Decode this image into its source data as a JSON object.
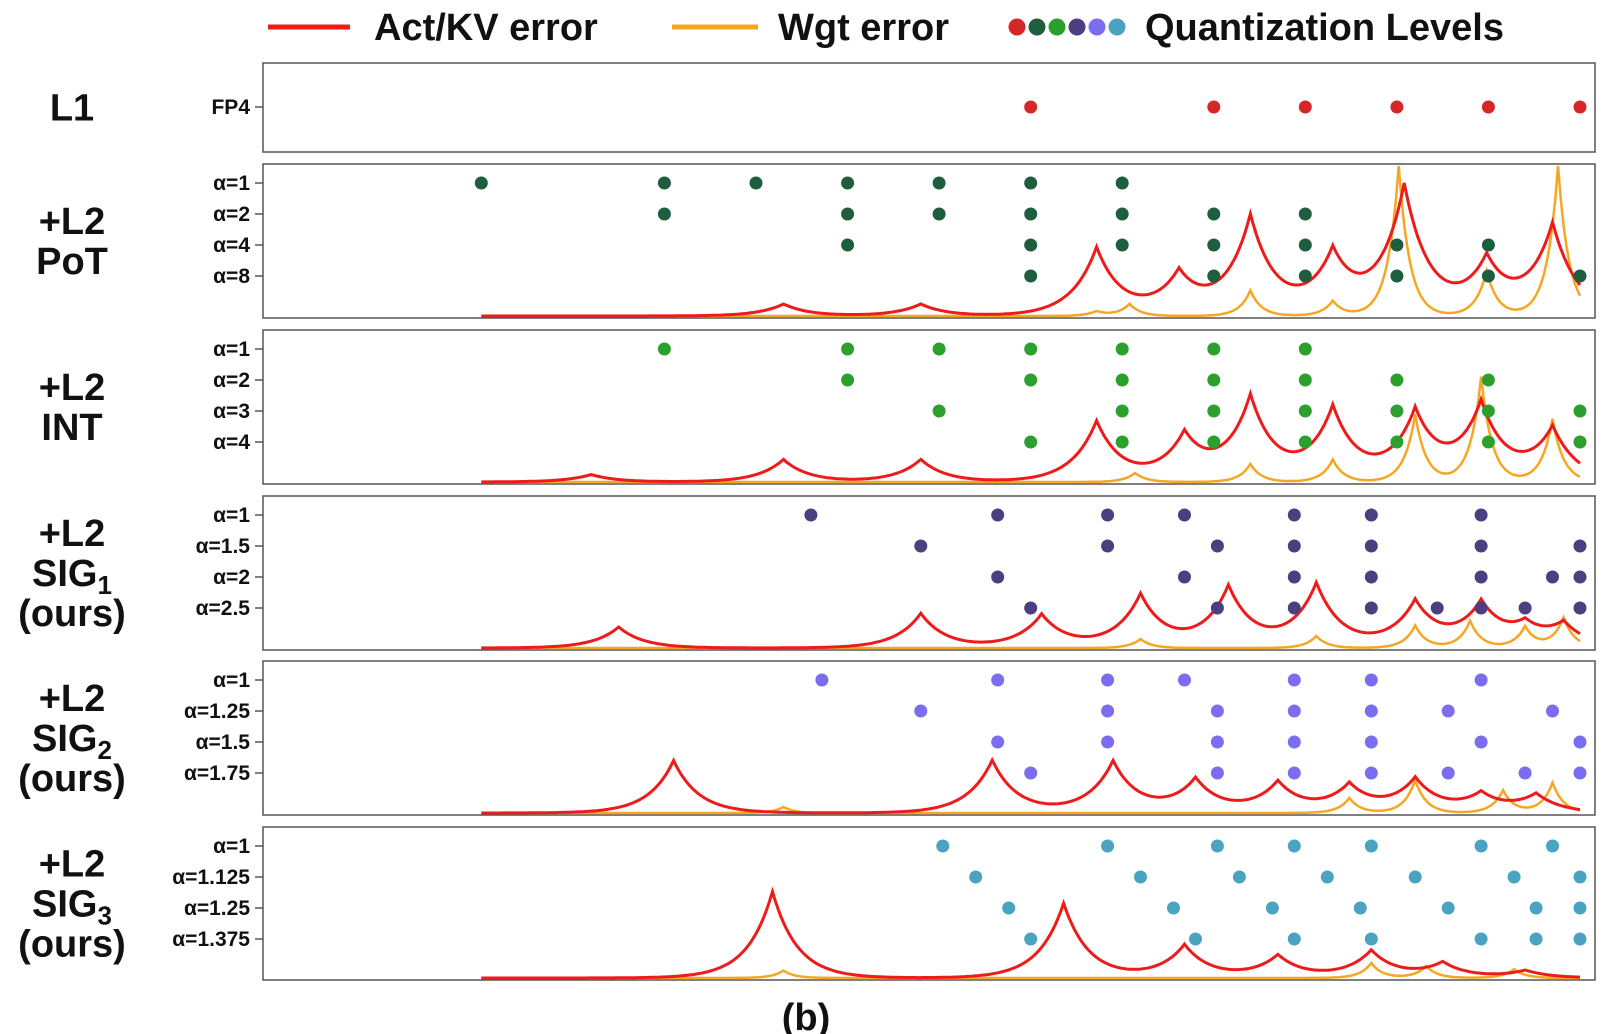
{
  "legend": {
    "act_label": "Act/KV error",
    "wgt_label": "Wgt error",
    "levels_label": "Quantization Levels",
    "act_color": "#ee1b1b",
    "wgt_color": "#f5a623",
    "dot_colors": [
      "#d62728",
      "#1e5e3f",
      "#2ca02c",
      "#4b3f7f",
      "#7b6cf0",
      "#4aa3c0"
    ]
  },
  "caption": "(b)",
  "chart_data": {
    "type": "scatter",
    "x_domain": [
      -1.27,
      1.0
    ],
    "panels": [
      {
        "label_lines": [
          "L1"
        ],
        "dot_color": "#d62728",
        "has_curves": false,
        "levels": [
          {
            "label": "FP4",
            "points": [
              0.0,
              0.3333,
              0.5,
              0.6667,
              0.8333,
              1.0
            ]
          }
        ]
      },
      {
        "label_lines": [
          "+L2",
          "PoT"
        ],
        "dot_color": "#1e5e3f",
        "has_curves": true,
        "levels": [
          {
            "label": "α=1",
            "points": [
              -1.0,
              -0.6667,
              -0.5,
              -0.3333,
              -0.1667,
              0.0,
              0.1667
            ]
          },
          {
            "label": "α=2",
            "points": [
              -0.6667,
              -0.3333,
              -0.1667,
              0.0,
              0.1667,
              0.3333,
              0.5
            ]
          },
          {
            "label": "α=4",
            "points": [
              -0.3333,
              0.0,
              0.1667,
              0.3333,
              0.5,
              0.6667,
              0.8333
            ]
          },
          {
            "label": "α=8",
            "points": [
              0.0,
              0.3333,
              0.5,
              0.6667,
              0.8333,
              1.0
            ]
          }
        ],
        "act_peaks": [
          [
            -0.45,
            0.08
          ],
          [
            -0.2,
            0.08
          ],
          [
            0.12,
            0.45
          ],
          [
            0.27,
            0.27
          ],
          [
            0.4,
            0.65
          ],
          [
            0.55,
            0.4
          ],
          [
            0.68,
            0.85
          ],
          [
            0.83,
            0.35
          ],
          [
            0.95,
            0.6
          ]
        ],
        "wgt_peaks": [
          [
            0.12,
            0.03
          ],
          [
            0.18,
            0.08
          ],
          [
            0.4,
            0.17
          ],
          [
            0.55,
            0.1
          ],
          [
            0.67,
            1.0
          ],
          [
            0.83,
            0.3
          ],
          [
            0.96,
            1.0
          ]
        ]
      },
      {
        "label_lines": [
          "+L2",
          "INT"
        ],
        "dot_color": "#2ca02c",
        "has_curves": true,
        "levels": [
          {
            "label": "α=1",
            "points": [
              -0.6667,
              -0.3333,
              -0.1667,
              0.0,
              0.1667,
              0.3333,
              0.5
            ]
          },
          {
            "label": "α=2",
            "points": [
              -0.3333,
              0.0,
              0.1667,
              0.3333,
              0.5,
              0.6667,
              0.8333
            ]
          },
          {
            "label": "α=3",
            "points": [
              -0.1667,
              0.1667,
              0.3333,
              0.5,
              0.6667,
              0.8333,
              1.0
            ]
          },
          {
            "label": "α=4",
            "points": [
              0.0,
              0.1667,
              0.3333,
              0.5,
              0.6667,
              0.8333,
              1.0
            ]
          }
        ],
        "act_peaks": [
          [
            -0.8,
            0.05
          ],
          [
            -0.45,
            0.15
          ],
          [
            -0.2,
            0.15
          ],
          [
            0.12,
            0.4
          ],
          [
            0.28,
            0.3
          ],
          [
            0.4,
            0.55
          ],
          [
            0.55,
            0.48
          ],
          [
            0.7,
            0.45
          ],
          [
            0.82,
            0.5
          ],
          [
            0.95,
            0.35
          ]
        ],
        "wgt_peaks": [
          [
            0.19,
            0.06
          ],
          [
            0.4,
            0.12
          ],
          [
            0.55,
            0.15
          ],
          [
            0.7,
            0.45
          ],
          [
            0.82,
            0.7
          ],
          [
            0.95,
            0.42
          ]
        ]
      },
      {
        "label_lines": [
          "+L2",
          "SIG1",
          "(ours)"
        ],
        "dot_color": "#4b3f7f",
        "has_curves": true,
        "levels": [
          {
            "label": "α=1",
            "points": [
              -0.4,
              -0.06,
              0.14,
              0.28,
              0.48,
              0.62,
              0.82
            ]
          },
          {
            "label": "α=1.5",
            "points": [
              -0.2,
              0.14,
              0.34,
              0.48,
              0.62,
              0.82,
              1.0
            ]
          },
          {
            "label": "α=2",
            "points": [
              -0.06,
              0.28,
              0.48,
              0.62,
              0.82,
              0.95,
              1.0
            ]
          },
          {
            "label": "α=2.5",
            "points": [
              0.0,
              0.34,
              0.48,
              0.62,
              0.74,
              0.82,
              0.9,
              1.0
            ]
          }
        ],
        "act_peaks": [
          [
            -0.75,
            0.14
          ],
          [
            -0.2,
            0.23
          ],
          [
            0.02,
            0.22
          ],
          [
            0.2,
            0.35
          ],
          [
            0.36,
            0.4
          ],
          [
            0.52,
            0.42
          ],
          [
            0.7,
            0.3
          ],
          [
            0.82,
            0.28
          ],
          [
            0.9,
            0.12
          ],
          [
            0.97,
            0.15
          ]
        ],
        "wgt_peaks": [
          [
            0.2,
            0.06
          ],
          [
            0.52,
            0.08
          ],
          [
            0.7,
            0.15
          ],
          [
            0.8,
            0.18
          ],
          [
            0.9,
            0.14
          ],
          [
            0.97,
            0.2
          ]
        ]
      },
      {
        "label_lines": [
          "+L2",
          "SIG2",
          "(ours)"
        ],
        "dot_color": "#7b6cf0",
        "has_curves": true,
        "levels": [
          {
            "label": "α=1",
            "points": [
              -0.38,
              -0.06,
              0.14,
              0.28,
              0.48,
              0.62,
              0.82
            ]
          },
          {
            "label": "α=1.25",
            "points": [
              -0.2,
              0.14,
              0.34,
              0.48,
              0.62,
              0.76,
              0.95
            ]
          },
          {
            "label": "α=1.5",
            "points": [
              -0.06,
              0.14,
              0.34,
              0.48,
              0.62,
              0.82,
              1.0
            ]
          },
          {
            "label": "α=1.75",
            "points": [
              0.0,
              0.34,
              0.48,
              0.62,
              0.76,
              0.9,
              1.0
            ]
          }
        ],
        "act_peaks": [
          [
            -0.65,
            0.35
          ],
          [
            -0.07,
            0.35
          ],
          [
            0.15,
            0.34
          ],
          [
            0.3,
            0.22
          ],
          [
            0.45,
            0.2
          ],
          [
            0.58,
            0.18
          ],
          [
            0.7,
            0.22
          ],
          [
            0.82,
            0.12
          ],
          [
            0.92,
            0.12
          ]
        ],
        "wgt_peaks": [
          [
            -0.45,
            0.04
          ],
          [
            0.58,
            0.1
          ],
          [
            0.7,
            0.22
          ],
          [
            0.86,
            0.15
          ],
          [
            0.95,
            0.2
          ]
        ]
      },
      {
        "label_lines": [
          "+L2",
          "SIG3",
          "(ours)"
        ],
        "dot_color": "#4aa3c0",
        "has_curves": true,
        "levels": [
          {
            "label": "α=1",
            "points": [
              -0.16,
              0.14,
              0.34,
              0.48,
              0.62,
              0.82,
              0.95
            ]
          },
          {
            "label": "α=1.125",
            "points": [
              -0.1,
              0.2,
              0.38,
              0.54,
              0.7,
              0.88,
              1.0
            ]
          },
          {
            "label": "α=1.25",
            "points": [
              -0.04,
              0.26,
              0.44,
              0.6,
              0.76,
              0.92,
              1.0
            ]
          },
          {
            "label": "α=1.375",
            "points": [
              0.0,
              0.3,
              0.48,
              0.62,
              0.82,
              0.92,
              1.0
            ]
          }
        ],
        "act_peaks": [
          [
            -0.47,
            0.58
          ],
          [
            0.06,
            0.5
          ],
          [
            0.28,
            0.22
          ],
          [
            0.45,
            0.15
          ],
          [
            0.62,
            0.18
          ],
          [
            0.75,
            0.1
          ],
          [
            0.9,
            0.05
          ]
        ],
        "wgt_peaks": [
          [
            -0.45,
            0.05
          ],
          [
            0.62,
            0.1
          ],
          [
            0.72,
            0.08
          ],
          [
            0.88,
            0.06
          ]
        ]
      }
    ]
  }
}
